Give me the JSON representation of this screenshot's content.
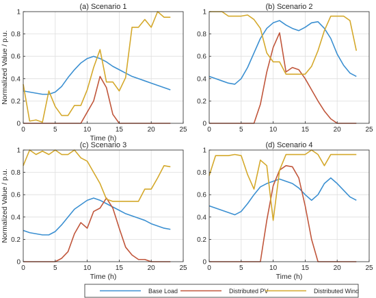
{
  "chart_data": [
    {
      "type": "line",
      "title": "(a) Scenario 1",
      "xlabel": "Time (h)",
      "ylabel": "Normalized Value / p.u.",
      "xlim": [
        0,
        25
      ],
      "ylim": [
        0,
        1
      ],
      "xticks": [
        0,
        5,
        10,
        15,
        20,
        25
      ],
      "yticks": [
        0,
        0.2,
        0.4,
        0.6,
        0.8,
        1
      ],
      "grid": true,
      "x": [
        0,
        1,
        2,
        3,
        4,
        5,
        6,
        7,
        8,
        9,
        10,
        11,
        12,
        13,
        14,
        15,
        16,
        17,
        18,
        19,
        20,
        21,
        22,
        23
      ],
      "series": [
        {
          "name": "Base Load",
          "values": [
            0.29,
            0.28,
            0.27,
            0.26,
            0.26,
            0.28,
            0.33,
            0.41,
            0.48,
            0.54,
            0.58,
            0.6,
            0.58,
            0.55,
            0.51,
            0.48,
            0.45,
            0.42,
            0.4,
            0.38,
            0.36,
            0.34,
            0.32,
            0.3
          ]
        },
        {
          "name": "Distributed PV",
          "values": [
            0,
            0,
            0,
            0,
            0,
            0,
            0,
            0,
            0,
            0,
            0.1,
            0.2,
            0.42,
            0.32,
            0.08,
            0,
            0,
            0,
            0,
            0,
            0,
            0,
            0,
            0
          ]
        },
        {
          "name": "Distributed Wind",
          "values": [
            0.35,
            0.02,
            0.03,
            0.01,
            0.29,
            0.15,
            0.07,
            0.07,
            0.16,
            0.16,
            0.3,
            0.5,
            0.66,
            0.37,
            0.37,
            0.29,
            0.41,
            0.86,
            0.86,
            0.93,
            0.86,
            1.0,
            0.95,
            0.95
          ]
        }
      ]
    },
    {
      "type": "line",
      "title": "(b) Scenario 2",
      "xlabel": "",
      "ylabel": "",
      "xlim": [
        0,
        25
      ],
      "ylim": [
        0,
        1
      ],
      "xticks": [
        0,
        5,
        10,
        15,
        20,
        25
      ],
      "yticks": [
        0,
        0.2,
        0.4,
        0.6,
        0.8,
        1
      ],
      "grid": true,
      "x": [
        0,
        1,
        2,
        3,
        4,
        5,
        6,
        7,
        8,
        9,
        10,
        11,
        12,
        13,
        14,
        15,
        16,
        17,
        18,
        19,
        20,
        21,
        22,
        23
      ],
      "series": [
        {
          "name": "Base Load",
          "values": [
            0.42,
            0.4,
            0.38,
            0.36,
            0.35,
            0.4,
            0.5,
            0.63,
            0.76,
            0.85,
            0.9,
            0.92,
            0.88,
            0.85,
            0.83,
            0.86,
            0.9,
            0.91,
            0.85,
            0.76,
            0.62,
            0.52,
            0.45,
            0.42
          ]
        },
        {
          "name": "Distributed PV",
          "values": [
            0,
            0,
            0,
            0,
            0,
            0,
            0,
            0,
            0.17,
            0.46,
            0.68,
            0.81,
            0.46,
            0.5,
            0.48,
            0.4,
            0.3,
            0.2,
            0.11,
            0.04,
            0,
            0,
            0,
            0
          ]
        },
        {
          "name": "Distributed Wind",
          "values": [
            1.0,
            1.0,
            1.0,
            0.96,
            0.96,
            0.96,
            0.97,
            0.93,
            0.85,
            0.63,
            0.55,
            0.55,
            0.44,
            0.44,
            0.44,
            0.44,
            0.51,
            0.65,
            0.83,
            0.96,
            0.96,
            0.96,
            0.92,
            0.65
          ]
        }
      ]
    },
    {
      "type": "line",
      "title": "(c) Scenario 3",
      "xlabel": "Time (h)",
      "ylabel": "Normalized Value / p.u.",
      "xlim": [
        0,
        25
      ],
      "ylim": [
        0,
        1
      ],
      "xticks": [
        0,
        5,
        10,
        15,
        20,
        25
      ],
      "yticks": [
        0,
        0.2,
        0.4,
        0.6,
        0.8,
        1
      ],
      "grid": true,
      "x": [
        0,
        1,
        2,
        3,
        4,
        5,
        6,
        7,
        8,
        9,
        10,
        11,
        12,
        13,
        14,
        15,
        16,
        17,
        18,
        19,
        20,
        21,
        22,
        23
      ],
      "series": [
        {
          "name": "Base Load",
          "values": [
            0.28,
            0.26,
            0.25,
            0.24,
            0.24,
            0.27,
            0.33,
            0.4,
            0.47,
            0.51,
            0.55,
            0.57,
            0.55,
            0.52,
            0.49,
            0.46,
            0.43,
            0.41,
            0.39,
            0.37,
            0.34,
            0.32,
            0.3,
            0.29
          ]
        },
        {
          "name": "Distributed PV",
          "values": [
            0,
            0,
            0,
            0,
            0,
            0,
            0.03,
            0.09,
            0.25,
            0.35,
            0.3,
            0.45,
            0.48,
            0.57,
            0.48,
            0.3,
            0.13,
            0.06,
            0.02,
            0.02,
            0,
            0,
            0,
            0
          ]
        },
        {
          "name": "Distributed Wind",
          "values": [
            0.86,
            1.0,
            0.96,
            0.99,
            0.96,
            1.0,
            0.96,
            0.96,
            1.0,
            0.93,
            0.9,
            0.8,
            0.7,
            0.56,
            0.54,
            0.54,
            0.54,
            0.54,
            0.54,
            0.65,
            0.65,
            0.75,
            0.86,
            0.85
          ]
        }
      ]
    },
    {
      "type": "line",
      "title": "(d) Scenario 4",
      "xlabel": "Time (h)",
      "ylabel": "",
      "xlim": [
        0,
        25
      ],
      "ylim": [
        0,
        1
      ],
      "xticks": [
        0,
        5,
        10,
        15,
        20,
        25
      ],
      "yticks": [
        0,
        0.2,
        0.4,
        0.6,
        0.8,
        1
      ],
      "grid": true,
      "x": [
        0,
        1,
        2,
        3,
        4,
        5,
        6,
        7,
        8,
        9,
        10,
        11,
        12,
        13,
        14,
        15,
        16,
        17,
        18,
        19,
        20,
        21,
        22,
        23
      ],
      "series": [
        {
          "name": "Base Load",
          "values": [
            0.5,
            0.48,
            0.46,
            0.44,
            0.42,
            0.45,
            0.52,
            0.6,
            0.67,
            0.7,
            0.72,
            0.74,
            0.72,
            0.7,
            0.66,
            0.6,
            0.55,
            0.6,
            0.7,
            0.75,
            0.7,
            0.64,
            0.58,
            0.55
          ]
        },
        {
          "name": "Distributed PV",
          "values": [
            0,
            0,
            0,
            0,
            0,
            0,
            0,
            0,
            0,
            0.37,
            0.68,
            0.82,
            0.86,
            0.85,
            0.75,
            0.5,
            0.2,
            0,
            0,
            0,
            0,
            0,
            0,
            0
          ]
        },
        {
          "name": "Distributed Wind",
          "values": [
            0.77,
            0.95,
            0.95,
            0.95,
            0.96,
            0.95,
            0.78,
            0.65,
            0.91,
            0.86,
            0.37,
            0.82,
            0.96,
            0.96,
            0.96,
            0.96,
            1.0,
            0.96,
            0.86,
            0.96,
            0.96,
            0.96,
            0.96,
            0.96
          ]
        }
      ]
    }
  ],
  "legend": {
    "placement": "bottom",
    "entries": [
      {
        "label": "Base Load",
        "color": "#3a8fd1"
      },
      {
        "label": "Distributed PV",
        "color": "#c0553a"
      },
      {
        "label": "Distributed Wind",
        "color": "#d4a82a"
      }
    ]
  },
  "colors": {
    "base_load": "#3a8fd1",
    "pv": "#c0553a",
    "wind": "#d4a82a"
  }
}
